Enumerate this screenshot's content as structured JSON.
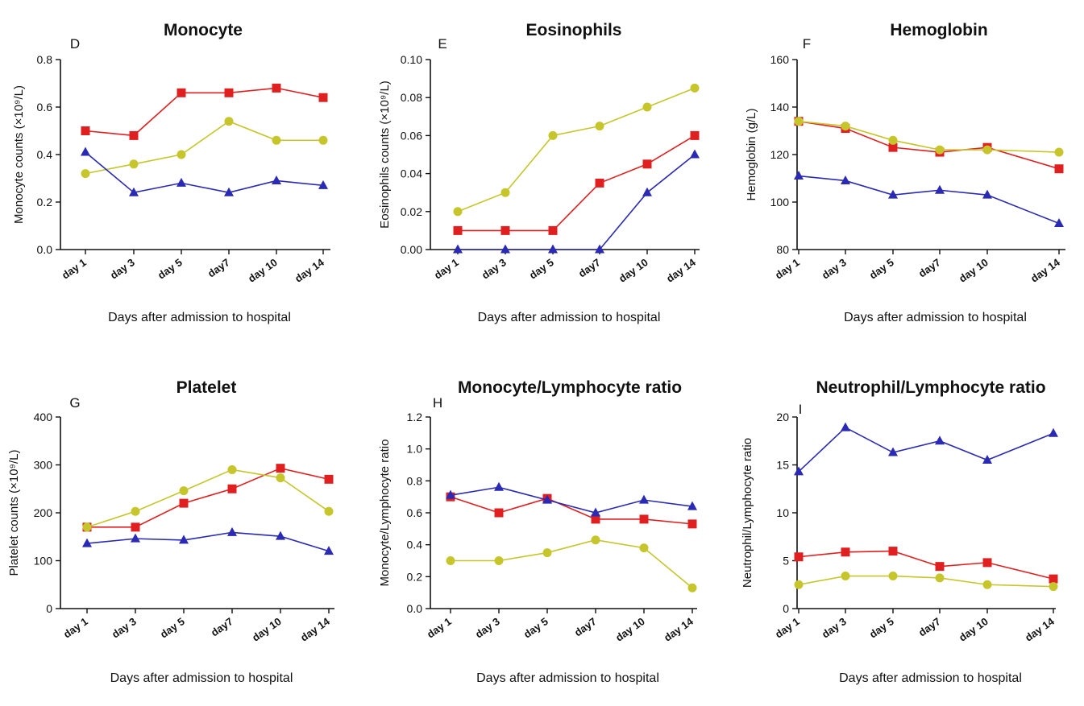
{
  "chart_data": [
    {
      "type": "line",
      "panel": "D",
      "title": "Monocyte",
      "xlabel": "Days after admission to hospital",
      "ylabel": "Monocyte counts (×10⁹/L)",
      "categories": [
        "day 1",
        "day 3",
        "day 5",
        "day7",
        "day 10",
        "day 14"
      ],
      "ylim": [
        0,
        0.8
      ],
      "yticks": [
        "0.0",
        "0.2",
        "0.4",
        "0.6",
        "0.8"
      ],
      "series": [
        {
          "color": "#e02020",
          "marker": "square",
          "values": [
            0.5,
            0.48,
            0.66,
            0.66,
            0.68,
            0.64
          ]
        },
        {
          "color": "#c6c62c",
          "marker": "circle",
          "values": [
            0.32,
            0.36,
            0.4,
            0.54,
            0.46,
            0.46
          ]
        },
        {
          "color": "#2a2ab4",
          "marker": "triangle",
          "values": [
            0.41,
            0.24,
            0.28,
            0.24,
            0.29,
            0.27
          ]
        }
      ]
    },
    {
      "type": "line",
      "panel": "E",
      "title": "Eosinophils",
      "xlabel": "Days after admission to hospital",
      "ylabel": "Eosinophils counts (×10⁹/L)",
      "categories": [
        "day 1",
        "day 3",
        "day 5",
        "day7",
        "day 10",
        "day 14"
      ],
      "ylim": [
        0,
        0.1
      ],
      "yticks": [
        "0.00",
        "0.02",
        "0.04",
        "0.06",
        "0.08",
        "0.10"
      ],
      "series": [
        {
          "color": "#e02020",
          "marker": "square",
          "values": [
            0.01,
            0.01,
            0.01,
            0.035,
            0.045,
            0.06
          ]
        },
        {
          "color": "#c6c62c",
          "marker": "circle",
          "values": [
            0.02,
            0.03,
            0.06,
            0.065,
            0.075,
            0.085
          ]
        },
        {
          "color": "#2a2ab4",
          "marker": "triangle",
          "values": [
            0.0,
            0.0,
            0.0,
            0.0,
            0.03,
            0.05
          ]
        }
      ]
    },
    {
      "type": "line",
      "panel": "F",
      "title": "Hemoglobin",
      "xlabel": "Days after admission to hospital",
      "ylabel": "Hemoglobin (g/L)",
      "categories": [
        "day 1",
        "day 3",
        "day 5",
        "day7",
        "day 10",
        "day 14"
      ],
      "ylim": [
        80,
        160
      ],
      "yticks": [
        "80",
        "100",
        "120",
        "140",
        "160"
      ],
      "series": [
        {
          "color": "#e02020",
          "marker": "square",
          "values": [
            134,
            131,
            123,
            121,
            123,
            114
          ]
        },
        {
          "color": "#c6c62c",
          "marker": "circle",
          "values": [
            134,
            132,
            126,
            122,
            122,
            121
          ]
        },
        {
          "color": "#2a2ab4",
          "marker": "triangle",
          "values": [
            111,
            109,
            103,
            105,
            103,
            91
          ]
        }
      ]
    },
    {
      "type": "line",
      "panel": "G",
      "title": "Platelet",
      "xlabel": "Days after admission to hospital",
      "ylabel": "Platelet counts (×10⁹/L)",
      "categories": [
        "day 1",
        "day 3",
        "day 5",
        "day7",
        "day 10",
        "day 14"
      ],
      "ylim": [
        0,
        400
      ],
      "yticks": [
        "0",
        "100",
        "200",
        "300",
        "400"
      ],
      "series": [
        {
          "color": "#e02020",
          "marker": "square",
          "values": [
            170,
            170,
            220,
            250,
            293,
            270
          ]
        },
        {
          "color": "#c6c62c",
          "marker": "circle",
          "values": [
            170,
            203,
            246,
            290,
            273,
            203
          ]
        },
        {
          "color": "#2a2ab4",
          "marker": "triangle",
          "values": [
            136,
            146,
            143,
            159,
            151,
            120
          ]
        }
      ]
    },
    {
      "type": "line",
      "panel": "H",
      "title": "Monocyte/Lymphocyte ratio",
      "xlabel": "Days after admission to hospital",
      "ylabel": "Monocyte/Lymphocyte ratio",
      "categories": [
        "day 1",
        "day 3",
        "day 5",
        "day7",
        "day 10",
        "day 14"
      ],
      "ylim": [
        0,
        1.2
      ],
      "yticks": [
        "0.0",
        "0.2",
        "0.4",
        "0.6",
        "0.8",
        "1.0",
        "1.2"
      ],
      "series": [
        {
          "color": "#e02020",
          "marker": "square",
          "values": [
            0.7,
            0.6,
            0.69,
            0.56,
            0.56,
            0.53
          ]
        },
        {
          "color": "#c6c62c",
          "marker": "circle",
          "values": [
            0.3,
            0.3,
            0.35,
            0.43,
            0.38,
            0.13
          ]
        },
        {
          "color": "#2a2ab4",
          "marker": "triangle",
          "values": [
            0.71,
            0.76,
            0.68,
            0.6,
            0.68,
            0.64
          ]
        }
      ]
    },
    {
      "type": "line",
      "panel": "I",
      "title": "Neutrophil/Lymphocyte ratio",
      "xlabel": "Days after admission to hospital",
      "ylabel": "Neutrophil/Lymphocyte ratio",
      "categories": [
        "day 1",
        "day 3",
        "day 5",
        "day7",
        "day 10",
        "day 14"
      ],
      "ylim": [
        0,
        20
      ],
      "yticks": [
        "0",
        "5",
        "10",
        "15",
        "20"
      ],
      "series": [
        {
          "color": "#e02020",
          "marker": "square",
          "values": [
            5.4,
            5.9,
            6.0,
            4.4,
            4.8,
            3.1
          ]
        },
        {
          "color": "#c6c62c",
          "marker": "circle",
          "values": [
            2.5,
            3.4,
            3.4,
            3.2,
            2.5,
            2.3
          ]
        },
        {
          "color": "#2a2ab4",
          "marker": "triangle",
          "values": [
            14.3,
            18.9,
            16.3,
            17.5,
            15.5,
            18.3
          ]
        }
      ]
    }
  ]
}
